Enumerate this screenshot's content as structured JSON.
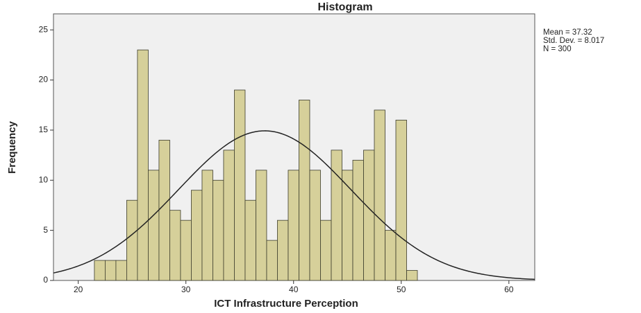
{
  "chart_data": {
    "type": "histogram",
    "title": "Histogram",
    "x_label": "ICT Infrastructure Perception",
    "y_label": "Frequency",
    "bins": [
      21.5,
      22.5,
      23.5,
      24.5,
      25.5,
      26.5,
      27.5,
      28.5,
      29.5,
      30.5,
      31.5,
      32.5,
      33.5,
      34.5,
      35.5,
      36.5,
      37.5,
      38.5,
      39.5,
      40.5,
      41.5,
      42.5,
      43.5,
      44.5,
      45.5,
      46.5,
      47.5,
      48.5,
      49.5,
      50.5,
      51.5
    ],
    "values": [
      2,
      2,
      2,
      8,
      23,
      11,
      14,
      7,
      6,
      9,
      11,
      10,
      13,
      19,
      8,
      11,
      4,
      6,
      11,
      18,
      11,
      6,
      13,
      11,
      12,
      13,
      17,
      5,
      16,
      1
    ],
    "color": "#d6d09a",
    "xlim": [
      17.7,
      62.4
    ],
    "ylim": [
      0,
      26.6
    ],
    "xticks": [
      20,
      30,
      40,
      50,
      60
    ],
    "yticks": [
      0,
      5,
      10,
      15,
      20,
      25
    ],
    "stats": {
      "mean": {
        "value": 37.32,
        "label": "Mean = 37.32"
      },
      "sd": {
        "value": 8.017,
        "label": "Std. Dev. = 8.017"
      },
      "n": {
        "value": 300,
        "label": "N = 300"
      }
    }
  }
}
